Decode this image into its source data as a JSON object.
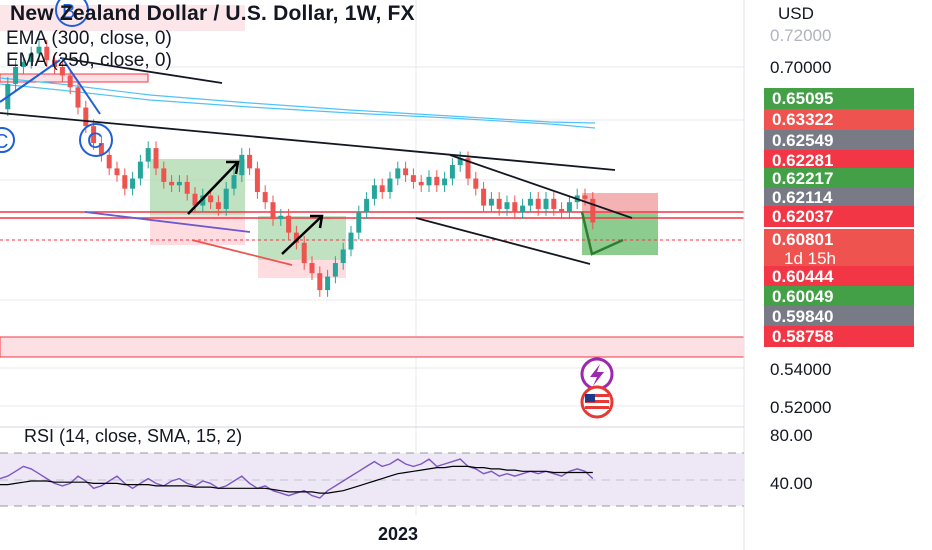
{
  "header": {
    "title": "New Zealand Dollar / U.S. Dollar, 1W, FX",
    "ema_300": "EMA (300, close, 0)",
    "ema_250": "EMA (250, close, 0)",
    "currency": "USD"
  },
  "price_axis_labels": [
    "0.72000",
    "0.70000",
    "0.54000",
    "0.52000"
  ],
  "price_tags": [
    {
      "value": "0.65095",
      "color": "#43a047"
    },
    {
      "value": "0.63322",
      "color": "#ef5350"
    },
    {
      "value": "0.62549",
      "color": "#787b86"
    },
    {
      "value": "0.62281",
      "color": "#f23645"
    },
    {
      "value": "0.62217",
      "color": "#43a047"
    },
    {
      "value": "0.62114",
      "color": "#787b86"
    },
    {
      "value": "0.62037",
      "color": "#f23645"
    },
    {
      "value": "0.60801",
      "sub": "1d 15h",
      "color": "#ef5350"
    },
    {
      "value": "0.60444",
      "color": "#f23645"
    },
    {
      "value": "0.60049",
      "color": "#43a047"
    },
    {
      "value": "0.59840",
      "color": "#787b86"
    },
    {
      "value": "0.58758",
      "color": "#f23645"
    }
  ],
  "wave_labels": [
    "B",
    "C",
    "C"
  ],
  "rsi": {
    "title": "RSI (14, close, SMA, 15, 2)",
    "axis_labels": [
      "80.00",
      "40.00"
    ],
    "colors": {
      "rsi": "#7e57c2",
      "sma": "#000000",
      "band": "#ede7f6"
    }
  },
  "x_axis_label": "2023",
  "chart_data": {
    "type": "candlestick",
    "title": "New Zealand Dollar / U.S. Dollar, 1W, FX",
    "ylabel": "USD",
    "y_ticks": [
      0.72,
      0.7,
      0.54,
      0.52
    ],
    "x_ticks": [
      "2023"
    ],
    "colors": {
      "up": "#26a69a",
      "down": "#ef5350"
    },
    "close_series": [
      0.675,
      0.69,
      0.7,
      0.703,
      0.708,
      0.712,
      0.704,
      0.7,
      0.695,
      0.688,
      0.676,
      0.665,
      0.655,
      0.648,
      0.64,
      0.636,
      0.628,
      0.634,
      0.644,
      0.652,
      0.64,
      0.632,
      0.63,
      0.632,
      0.625,
      0.618,
      0.624,
      0.62,
      0.616,
      0.628,
      0.636,
      0.648,
      0.64,
      0.626,
      0.62,
      0.61,
      0.612,
      0.602,
      0.596,
      0.584,
      0.578,
      0.568,
      0.576,
      0.584,
      0.592,
      0.602,
      0.614,
      0.622,
      0.63,
      0.626,
      0.634,
      0.64,
      0.636,
      0.632,
      0.63,
      0.635,
      0.63,
      0.634,
      0.642,
      0.646,
      0.634,
      0.628,
      0.618,
      0.622,
      0.616,
      0.62,
      0.614,
      0.618,
      0.622,
      0.616,
      0.622,
      0.616,
      0.614,
      0.62,
      0.624,
      0.622,
      0.608
    ],
    "rsi_values": [
      50,
      52,
      56,
      60,
      58,
      54,
      50,
      46,
      44,
      46,
      52,
      48,
      42,
      44,
      48,
      52,
      46,
      42,
      46,
      50,
      46,
      44,
      48,
      50,
      46,
      44,
      48,
      46,
      42,
      44,
      48,
      52,
      46,
      42,
      44,
      40,
      38,
      36,
      38,
      40,
      36,
      34,
      40,
      44,
      48,
      52,
      56,
      60,
      64,
      60,
      62,
      66,
      62,
      60,
      62,
      66,
      60,
      62,
      64,
      66,
      60,
      58,
      54,
      56,
      52,
      54,
      52,
      54,
      56,
      54,
      56,
      54,
      52,
      56,
      58,
      56,
      50
    ],
    "rsi_sma_values": [
      45,
      45,
      46,
      47,
      48,
      48,
      48,
      47,
      47,
      47,
      47,
      47,
      46,
      46,
      46,
      46,
      45,
      45,
      45,
      45,
      44,
      44,
      44,
      44,
      44,
      43,
      43,
      43,
      42,
      42,
      42,
      42,
      42,
      42,
      42,
      41,
      40,
      39,
      39,
      39,
      39,
      38,
      38,
      39,
      40,
      42,
      44,
      46,
      48,
      50,
      52,
      54,
      55,
      56,
      57,
      58,
      59,
      59,
      60,
      60,
      60,
      59,
      59,
      58,
      58,
      57,
      57,
      56,
      56,
      56,
      56,
      55,
      55,
      55,
      55,
      55,
      55
    ],
    "rsi_ylim": [
      20,
      90
    ]
  }
}
